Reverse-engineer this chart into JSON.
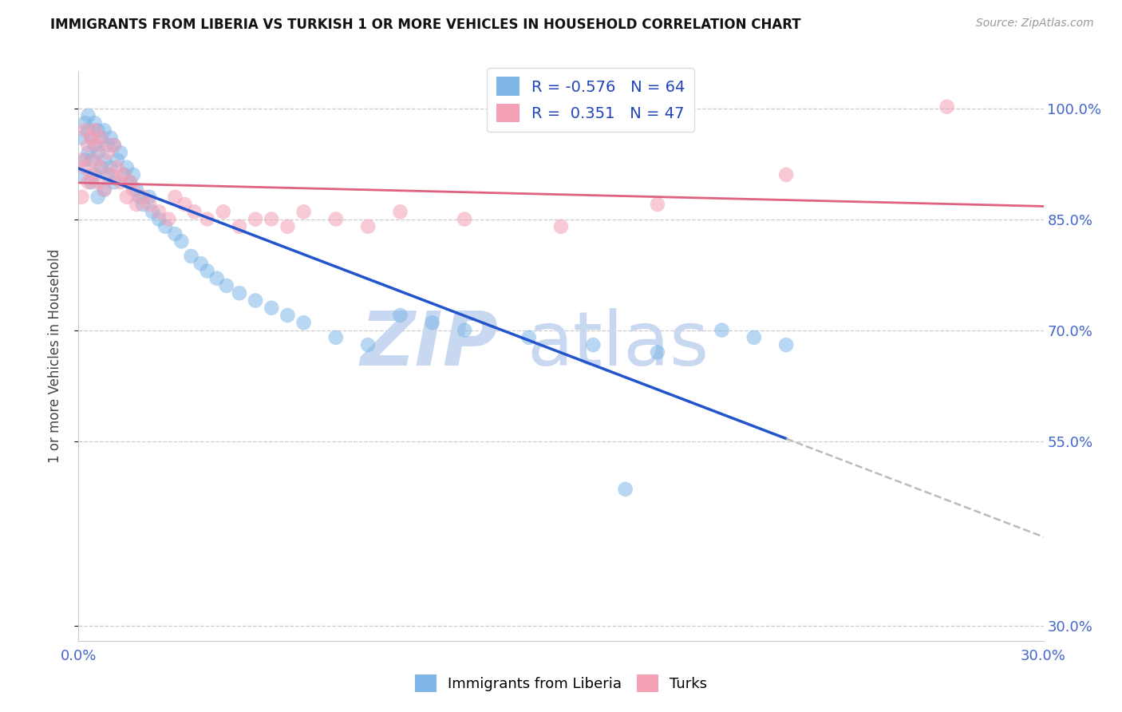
{
  "title": "IMMIGRANTS FROM LIBERIA VS TURKISH 1 OR MORE VEHICLES IN HOUSEHOLD CORRELATION CHART",
  "source": "Source: ZipAtlas.com",
  "ylabel": "1 or more Vehicles in Household",
  "xlim": [
    0.0,
    0.3
  ],
  "ylim": [
    0.28,
    1.05
  ],
  "ytick_vals": [
    0.3,
    0.55,
    0.7,
    0.85,
    1.0
  ],
  "ytick_labels": [
    "30.0%",
    "55.0%",
    "70.0%",
    "85.0%",
    "100.0%"
  ],
  "xtick_vals": [
    0.0,
    0.05,
    0.1,
    0.15,
    0.2,
    0.25,
    0.3
  ],
  "xtick_labels": [
    "0.0%",
    "",
    "",
    "",
    "",
    "",
    "30.0%"
  ],
  "legend_liberia_label": "Immigrants from Liberia",
  "legend_turks_label": "Turks",
  "R_liberia": -0.576,
  "N_liberia": 64,
  "R_turks": 0.351,
  "N_turks": 47,
  "color_liberia": "#7EB6E8",
  "color_turks": "#F4A0B5",
  "line_liberia": "#2255CC",
  "line_turks": "#E06080",
  "line_dash_color": "#BBBBBB",
  "liberia_x": [
    0.001,
    0.001,
    0.002,
    0.002,
    0.003,
    0.003,
    0.003,
    0.004,
    0.004,
    0.004,
    0.005,
    0.005,
    0.005,
    0.006,
    0.006,
    0.006,
    0.007,
    0.007,
    0.008,
    0.008,
    0.008,
    0.009,
    0.009,
    0.01,
    0.01,
    0.011,
    0.011,
    0.012,
    0.013,
    0.014,
    0.015,
    0.016,
    0.017,
    0.018,
    0.019,
    0.02,
    0.022,
    0.023,
    0.025,
    0.027,
    0.03,
    0.032,
    0.035,
    0.038,
    0.04,
    0.043,
    0.046,
    0.05,
    0.055,
    0.06,
    0.065,
    0.07,
    0.08,
    0.09,
    0.1,
    0.11,
    0.12,
    0.14,
    0.16,
    0.18,
    0.2,
    0.21,
    0.22,
    0.17
  ],
  "liberia_y": [
    0.96,
    0.91,
    0.98,
    0.93,
    0.97,
    0.94,
    0.99,
    0.96,
    0.93,
    0.9,
    0.98,
    0.95,
    0.91,
    0.97,
    0.94,
    0.88,
    0.96,
    0.92,
    0.97,
    0.93,
    0.89,
    0.95,
    0.91,
    0.96,
    0.92,
    0.95,
    0.9,
    0.93,
    0.94,
    0.91,
    0.92,
    0.9,
    0.91,
    0.89,
    0.88,
    0.87,
    0.88,
    0.86,
    0.85,
    0.84,
    0.83,
    0.82,
    0.8,
    0.79,
    0.78,
    0.77,
    0.76,
    0.75,
    0.74,
    0.73,
    0.72,
    0.71,
    0.69,
    0.68,
    0.72,
    0.71,
    0.7,
    0.69,
    0.68,
    0.67,
    0.7,
    0.69,
    0.68,
    0.485
  ],
  "turks_x": [
    0.001,
    0.001,
    0.002,
    0.002,
    0.003,
    0.003,
    0.004,
    0.004,
    0.005,
    0.005,
    0.006,
    0.006,
    0.007,
    0.007,
    0.008,
    0.009,
    0.01,
    0.011,
    0.012,
    0.013,
    0.014,
    0.015,
    0.016,
    0.017,
    0.018,
    0.02,
    0.022,
    0.025,
    0.028,
    0.03,
    0.033,
    0.036,
    0.04,
    0.045,
    0.05,
    0.055,
    0.06,
    0.065,
    0.07,
    0.08,
    0.09,
    0.1,
    0.12,
    0.15,
    0.18,
    0.22,
    0.27
  ],
  "turks_y": [
    0.93,
    0.88,
    0.97,
    0.92,
    0.95,
    0.9,
    0.96,
    0.91,
    0.97,
    0.93,
    0.95,
    0.9,
    0.96,
    0.92,
    0.89,
    0.94,
    0.91,
    0.95,
    0.92,
    0.9,
    0.91,
    0.88,
    0.9,
    0.89,
    0.87,
    0.88,
    0.87,
    0.86,
    0.85,
    0.88,
    0.87,
    0.86,
    0.85,
    0.86,
    0.84,
    0.85,
    0.85,
    0.84,
    0.86,
    0.85,
    0.84,
    0.86,
    0.85,
    0.84,
    0.87,
    0.91,
    1.002
  ],
  "scatter_size": 180,
  "scatter_alpha": 0.55,
  "title_fontsize": 12,
  "tick_fontsize": 13,
  "legend_fontsize": 14
}
